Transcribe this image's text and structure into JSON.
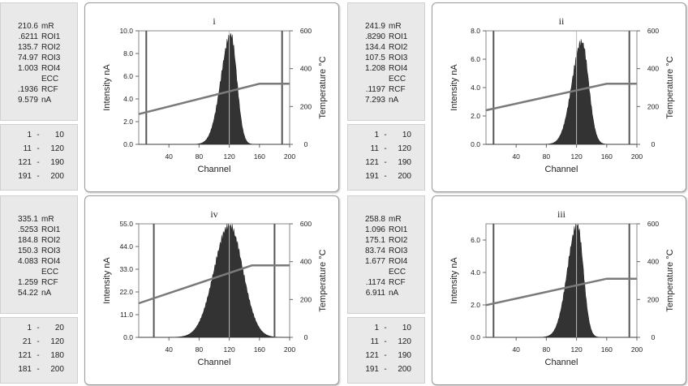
{
  "chart_data": [
    {
      "type": "area",
      "title": "i",
      "xlabel": "Channel",
      "ylabel": "Intensity nA",
      "y2label": "Temperature °C",
      "xlim": [
        0,
        200
      ],
      "ylim": [
        0,
        10.0
      ],
      "y2lim": [
        0,
        600
      ],
      "xticks": [
        "40",
        "80",
        "120",
        "160",
        "200"
      ],
      "yticks": [
        "0.0",
        "2.0",
        "4.0",
        "6.0",
        "8.0",
        "10.0"
      ],
      "y2ticks": [
        "0",
        "200",
        "400",
        "600"
      ],
      "peak": {
        "channel": 122,
        "intensity": 9.6,
        "sigma_left": 13,
        "sigma_right": 8
      },
      "temperature": {
        "x": [
          0,
          160,
          200
        ],
        "y": [
          160,
          320,
          320
        ]
      },
      "markers": [
        10,
        120,
        190
      ],
      "info": [
        {
          "value": "210.6",
          "unit": "mR"
        },
        {
          "value": ".6211",
          "unit": "ROI1"
        },
        {
          "value": "135.7",
          "unit": "ROI2"
        },
        {
          "value": "74.97",
          "unit": "ROI3"
        },
        {
          "value": "1.003",
          "unit": "ROI4"
        },
        {
          "value": "",
          "unit": "ECC"
        },
        {
          "value": ".1936",
          "unit": "RCF"
        },
        {
          "value": "9.579",
          "unit": "nA"
        }
      ],
      "channels": [
        {
          "from": "1",
          "to": "10"
        },
        {
          "from": "11",
          "to": "120"
        },
        {
          "from": "121",
          "to": "190"
        },
        {
          "from": "191",
          "to": "200"
        }
      ]
    },
    {
      "type": "area",
      "title": "ii",
      "xlabel": "Channel",
      "ylabel": "Intensity nA",
      "y2label": "Temperature °C",
      "xlim": [
        0,
        200
      ],
      "ylim": [
        0,
        8.0
      ],
      "y2lim": [
        0,
        600
      ],
      "xticks": [
        "40",
        "80",
        "120",
        "160",
        "200"
      ],
      "yticks": [
        "0.0",
        "2.0",
        "4.0",
        "6.0",
        "8.0"
      ],
      "y2ticks": [
        "0",
        "200",
        "400",
        "600"
      ],
      "peak": {
        "channel": 127,
        "intensity": 7.2,
        "sigma_left": 13,
        "sigma_right": 9
      },
      "temperature": {
        "x": [
          0,
          160,
          200
        ],
        "y": [
          180,
          320,
          320
        ]
      },
      "markers": [
        10,
        120,
        190
      ],
      "info": [
        {
          "value": "241.9",
          "unit": "mR"
        },
        {
          "value": ".8290",
          "unit": "ROI1"
        },
        {
          "value": "134.4",
          "unit": "ROI2"
        },
        {
          "value": "107.5",
          "unit": "ROI3"
        },
        {
          "value": "1.208",
          "unit": "ROI4"
        },
        {
          "value": "",
          "unit": "ECC"
        },
        {
          "value": ".1197",
          "unit": "RCF"
        },
        {
          "value": "7.293",
          "unit": "nA"
        }
      ],
      "channels": [
        {
          "from": "1",
          "to": "10"
        },
        {
          "from": "11",
          "to": "120"
        },
        {
          "from": "121",
          "to": "190"
        },
        {
          "from": "191",
          "to": "200"
        }
      ]
    },
    {
      "type": "area",
      "title": "iv",
      "xlabel": "Channel",
      "ylabel": "Intensity nA",
      "y2label": "Temperature °C",
      "xlim": [
        0,
        200
      ],
      "ylim": [
        0,
        55.0
      ],
      "y2lim": [
        0,
        600
      ],
      "xticks": [
        "40",
        "80",
        "120",
        "160",
        "200"
      ],
      "yticks": [
        "0.0",
        "11.0",
        "22.0",
        "33.0",
        "44.0",
        "55.0"
      ],
      "y2ticks": [
        "0",
        "200",
        "400",
        "600"
      ],
      "peak": {
        "channel": 120,
        "intensity": 54.0,
        "sigma_left": 20,
        "sigma_right": 18
      },
      "temperature": {
        "x": [
          0,
          150,
          200
        ],
        "y": [
          180,
          380,
          380
        ]
      },
      "markers": [
        20,
        120,
        180
      ],
      "info": [
        {
          "value": "335.1",
          "unit": "mR"
        },
        {
          "value": ".5253",
          "unit": "ROI1"
        },
        {
          "value": "184.8",
          "unit": "ROI2"
        },
        {
          "value": "150.3",
          "unit": "ROI3"
        },
        {
          "value": "4.083",
          "unit": "ROI4"
        },
        {
          "value": "",
          "unit": "ECC"
        },
        {
          "value": "1.259",
          "unit": "RCF"
        },
        {
          "value": "54.22",
          "unit": "nA"
        }
      ],
      "channels": [
        {
          "from": "1",
          "to": "20"
        },
        {
          "from": "21",
          "to": "120"
        },
        {
          "from": "121",
          "to": "180"
        },
        {
          "from": "181",
          "to": "200"
        }
      ]
    },
    {
      "type": "area",
      "title": "iii",
      "xlabel": "Channel",
      "ylabel": "Intensity nA",
      "y2label": "Temperature °C",
      "xlim": [
        0,
        200
      ],
      "ylim": [
        0,
        7.0
      ],
      "y2lim": [
        0,
        600
      ],
      "xticks": [
        "40",
        "80",
        "120",
        "160",
        "200"
      ],
      "yticks": [
        "0.0",
        "2.0",
        "4.0",
        "6.0"
      ],
      "y2ticks": [
        "0",
        "200",
        "400",
        "600"
      ],
      "peak": {
        "channel": 121,
        "intensity": 6.9,
        "sigma_left": 13,
        "sigma_right": 8
      },
      "temperature": {
        "x": [
          0,
          160,
          200
        ],
        "y": [
          170,
          310,
          310
        ]
      },
      "markers": [
        10,
        120,
        190
      ],
      "info": [
        {
          "value": "258.8",
          "unit": "mR"
        },
        {
          "value": "1.096",
          "unit": "ROI1"
        },
        {
          "value": "175.1",
          "unit": "ROI2"
        },
        {
          "value": "83.74",
          "unit": "ROI3"
        },
        {
          "value": "1.677",
          "unit": "ROI4"
        },
        {
          "value": "",
          "unit": "ECC"
        },
        {
          "value": ".1174",
          "unit": "RCF"
        },
        {
          "value": "6.911",
          "unit": "nA"
        }
      ],
      "channels": [
        {
          "from": "1",
          "to": "10"
        },
        {
          "from": "11",
          "to": "120"
        },
        {
          "from": "121",
          "to": "190"
        },
        {
          "from": "191",
          "to": "200"
        }
      ]
    }
  ]
}
